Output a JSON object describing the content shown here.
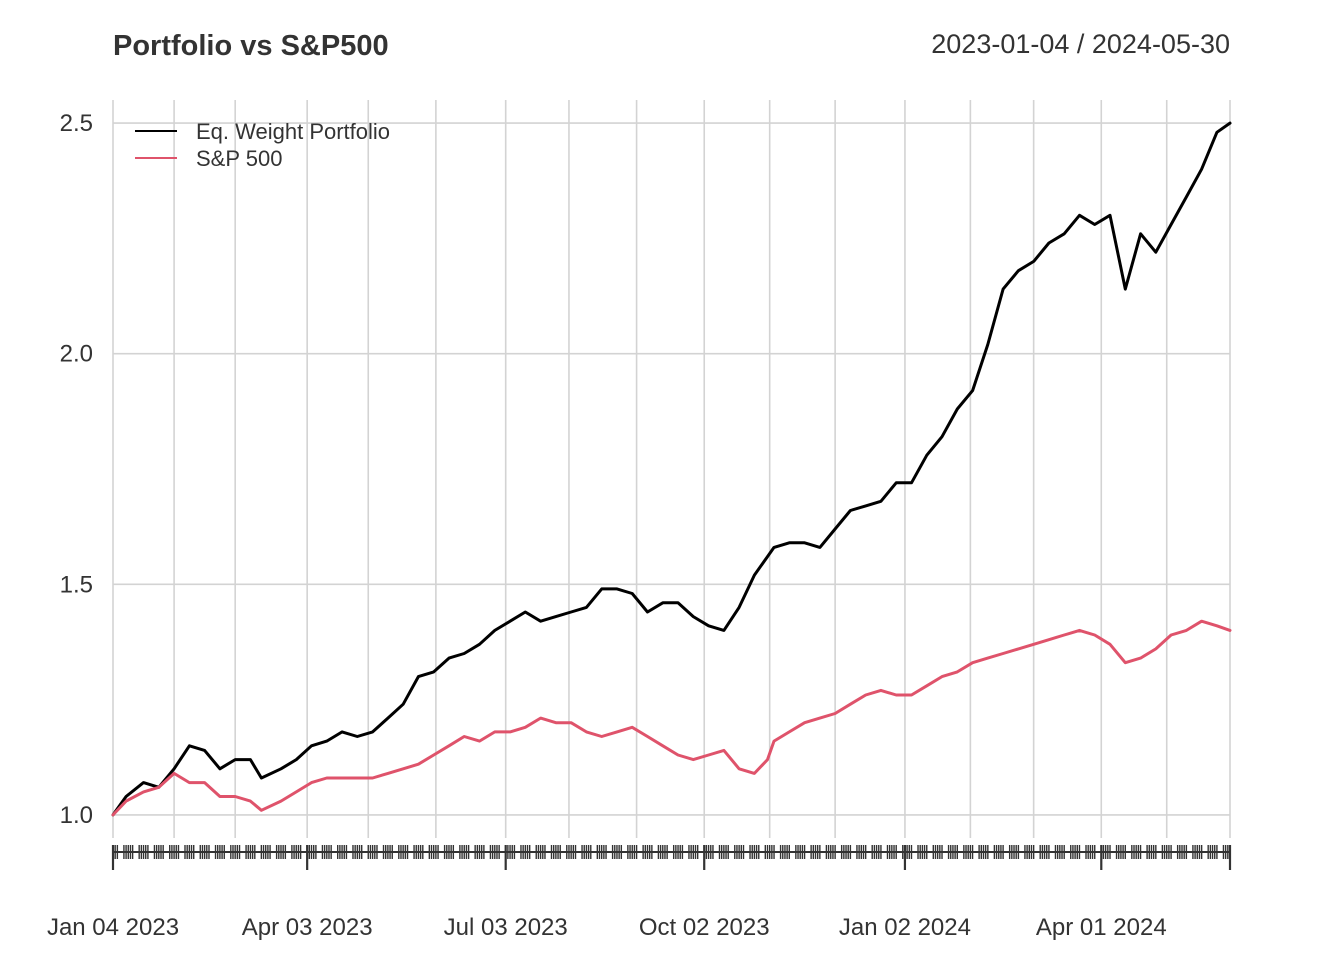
{
  "chart_data": {
    "type": "line",
    "title": "Portfolio vs S&P500",
    "date_range": "2023-01-04 / 2024-05-30",
    "xlabel": "",
    "ylabel": "",
    "ylim": [
      0.95,
      2.55
    ],
    "xlim": [
      "2023-01-04",
      "2024-05-30"
    ],
    "grid": true,
    "legend_position": "top-left",
    "y_ticks": [
      1.0,
      1.5,
      2.0,
      2.5
    ],
    "y_tick_labels": [
      "1.0",
      "1.5",
      "2.0",
      "2.5"
    ],
    "x_ticks": [
      "2023-01-04",
      "2023-04-03",
      "2023-07-03",
      "2023-10-02",
      "2024-01-02",
      "2024-04-01"
    ],
    "x_tick_labels": [
      "Jan 04 2023",
      "Apr 03 2023",
      "Jul 03 2023",
      "Oct 02 2023",
      "Jan 02 2024",
      "Apr 01 2024"
    ],
    "x_grid_dates": [
      "2023-01-04",
      "2023-02-01",
      "2023-03-01",
      "2023-04-03",
      "2023-05-01",
      "2023-06-01",
      "2023-07-03",
      "2023-08-01",
      "2023-09-01",
      "2023-10-02",
      "2023-11-01",
      "2023-12-01",
      "2024-01-02",
      "2024-02-01",
      "2024-03-01",
      "2024-04-01",
      "2024-05-01",
      "2024-05-30"
    ],
    "series": [
      {
        "name": "Eq. Weight Portfolio",
        "color": "#000000",
        "x": [
          "2023-01-04",
          "2023-01-10",
          "2023-01-18",
          "2023-01-25",
          "2023-02-01",
          "2023-02-08",
          "2023-02-15",
          "2023-02-22",
          "2023-03-01",
          "2023-03-08",
          "2023-03-13",
          "2023-03-22",
          "2023-03-29",
          "2023-04-05",
          "2023-04-12",
          "2023-04-19",
          "2023-04-26",
          "2023-05-03",
          "2023-05-10",
          "2023-05-17",
          "2023-05-24",
          "2023-05-31",
          "2023-06-07",
          "2023-06-14",
          "2023-06-21",
          "2023-06-28",
          "2023-07-05",
          "2023-07-12",
          "2023-07-19",
          "2023-07-26",
          "2023-08-02",
          "2023-08-09",
          "2023-08-16",
          "2023-08-23",
          "2023-08-30",
          "2023-09-06",
          "2023-09-13",
          "2023-09-20",
          "2023-09-27",
          "2023-10-04",
          "2023-10-11",
          "2023-10-18",
          "2023-10-25",
          "2023-10-31",
          "2023-11-03",
          "2023-11-10",
          "2023-11-17",
          "2023-11-24",
          "2023-12-01",
          "2023-12-08",
          "2023-12-15",
          "2023-12-22",
          "2023-12-29",
          "2024-01-05",
          "2024-01-12",
          "2024-01-19",
          "2024-01-26",
          "2024-02-02",
          "2024-02-09",
          "2024-02-16",
          "2024-02-23",
          "2024-03-01",
          "2024-03-08",
          "2024-03-15",
          "2024-03-22",
          "2024-03-29",
          "2024-04-05",
          "2024-04-12",
          "2024-04-19",
          "2024-04-26",
          "2024-05-03",
          "2024-05-10",
          "2024-05-17",
          "2024-05-24",
          "2024-05-30"
        ],
        "values": [
          1.0,
          1.04,
          1.07,
          1.06,
          1.1,
          1.15,
          1.14,
          1.1,
          1.12,
          1.12,
          1.08,
          1.1,
          1.12,
          1.15,
          1.16,
          1.18,
          1.17,
          1.18,
          1.21,
          1.24,
          1.3,
          1.31,
          1.34,
          1.35,
          1.37,
          1.4,
          1.42,
          1.44,
          1.42,
          1.43,
          1.44,
          1.45,
          1.49,
          1.49,
          1.48,
          1.44,
          1.46,
          1.46,
          1.43,
          1.41,
          1.4,
          1.45,
          1.52,
          1.56,
          1.58,
          1.59,
          1.59,
          1.58,
          1.62,
          1.66,
          1.67,
          1.68,
          1.72,
          1.72,
          1.78,
          1.82,
          1.88,
          1.92,
          2.02,
          2.14,
          2.18,
          2.2,
          2.24,
          2.26,
          2.3,
          2.28,
          2.3,
          2.14,
          2.26,
          2.22,
          2.28,
          2.34,
          2.4,
          2.48,
          2.5
        ]
      },
      {
        "name": "S&P 500",
        "color": "#DF536B",
        "x": [
          "2023-01-04",
          "2023-01-10",
          "2023-01-18",
          "2023-01-25",
          "2023-02-01",
          "2023-02-08",
          "2023-02-15",
          "2023-02-22",
          "2023-03-01",
          "2023-03-08",
          "2023-03-13",
          "2023-03-22",
          "2023-03-29",
          "2023-04-05",
          "2023-04-12",
          "2023-04-19",
          "2023-04-26",
          "2023-05-03",
          "2023-05-10",
          "2023-05-17",
          "2023-05-24",
          "2023-05-31",
          "2023-06-07",
          "2023-06-14",
          "2023-06-21",
          "2023-06-28",
          "2023-07-05",
          "2023-07-12",
          "2023-07-19",
          "2023-07-26",
          "2023-08-02",
          "2023-08-09",
          "2023-08-16",
          "2023-08-23",
          "2023-08-30",
          "2023-09-06",
          "2023-09-13",
          "2023-09-20",
          "2023-09-27",
          "2023-10-04",
          "2023-10-11",
          "2023-10-18",
          "2023-10-25",
          "2023-10-31",
          "2023-11-03",
          "2023-11-10",
          "2023-11-17",
          "2023-11-24",
          "2023-12-01",
          "2023-12-08",
          "2023-12-15",
          "2023-12-22",
          "2023-12-29",
          "2024-01-05",
          "2024-01-12",
          "2024-01-19",
          "2024-01-26",
          "2024-02-02",
          "2024-02-09",
          "2024-02-16",
          "2024-02-23",
          "2024-03-01",
          "2024-03-08",
          "2024-03-15",
          "2024-03-22",
          "2024-03-29",
          "2024-04-05",
          "2024-04-12",
          "2024-04-19",
          "2024-04-26",
          "2024-05-03",
          "2024-05-10",
          "2024-05-17",
          "2024-05-24",
          "2024-05-30"
        ],
        "values": [
          1.0,
          1.03,
          1.05,
          1.06,
          1.09,
          1.07,
          1.07,
          1.04,
          1.04,
          1.03,
          1.01,
          1.03,
          1.05,
          1.07,
          1.08,
          1.08,
          1.08,
          1.08,
          1.09,
          1.1,
          1.11,
          1.13,
          1.15,
          1.17,
          1.16,
          1.18,
          1.18,
          1.19,
          1.21,
          1.2,
          1.2,
          1.18,
          1.17,
          1.18,
          1.19,
          1.17,
          1.15,
          1.13,
          1.12,
          1.13,
          1.14,
          1.1,
          1.09,
          1.12,
          1.16,
          1.18,
          1.2,
          1.21,
          1.22,
          1.24,
          1.26,
          1.27,
          1.26,
          1.26,
          1.28,
          1.3,
          1.31,
          1.33,
          1.34,
          1.35,
          1.36,
          1.37,
          1.38,
          1.39,
          1.4,
          1.39,
          1.37,
          1.33,
          1.34,
          1.36,
          1.39,
          1.4,
          1.42,
          1.41,
          1.4
        ]
      }
    ]
  }
}
